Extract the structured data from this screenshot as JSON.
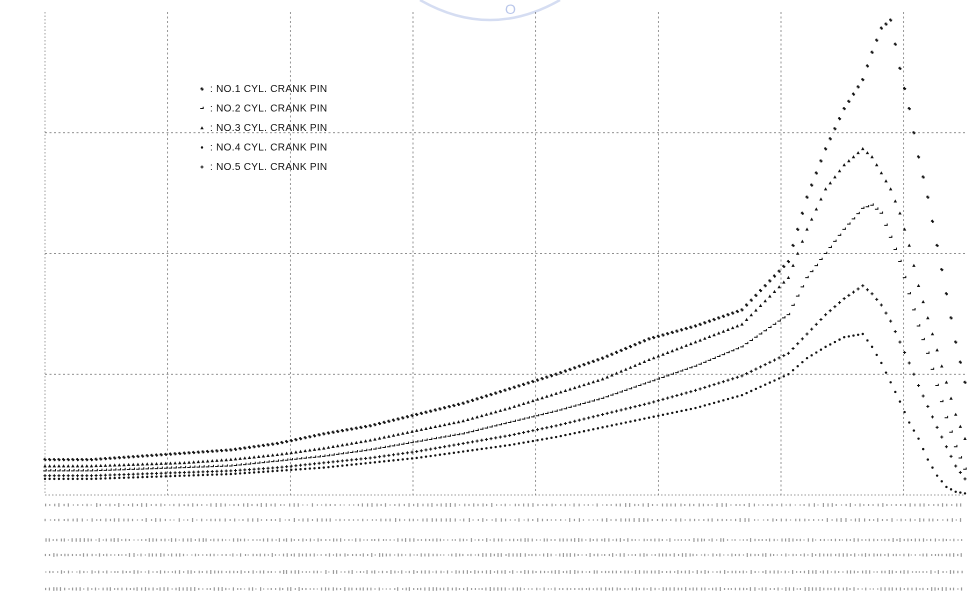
{
  "chart_data": {
    "type": "scatter",
    "title": "",
    "ylabel": "",
    "ylim": [
      0,
      300
    ],
    "x_index_range": [
      0,
      99
    ],
    "grid": true,
    "legend_position": "top-left",
    "series": [
      {
        "name": ": NO.1 CYL. CRANK PIN",
        "marker": "asterisk",
        "points": [
          [
            0,
            22
          ],
          [
            5,
            22
          ],
          [
            10,
            24
          ],
          [
            15,
            26
          ],
          [
            20,
            28
          ],
          [
            25,
            32
          ],
          [
            30,
            38
          ],
          [
            35,
            43
          ],
          [
            40,
            50
          ],
          [
            45,
            57
          ],
          [
            50,
            66
          ],
          [
            55,
            75
          ],
          [
            60,
            85
          ],
          [
            65,
            97
          ],
          [
            70,
            105
          ],
          [
            75,
            115
          ],
          [
            80,
            145
          ],
          [
            82,
            185
          ],
          [
            84,
            215
          ],
          [
            86,
            240
          ],
          [
            88,
            258
          ],
          [
            89,
            275
          ],
          [
            90,
            290
          ],
          [
            91,
            295
          ],
          [
            92,
            265
          ],
          [
            93,
            240
          ],
          [
            94,
            210
          ],
          [
            95,
            185
          ],
          [
            96,
            155
          ],
          [
            97,
            125
          ],
          [
            98,
            95
          ],
          [
            99,
            70
          ]
        ]
      },
      {
        "name": ": NO.2 CYL. CRANK PIN",
        "marker": "tick",
        "points": [
          [
            0,
            15
          ],
          [
            5,
            15
          ],
          [
            10,
            16
          ],
          [
            15,
            17
          ],
          [
            20,
            18
          ],
          [
            25,
            21
          ],
          [
            30,
            24
          ],
          [
            35,
            28
          ],
          [
            40,
            33
          ],
          [
            45,
            38
          ],
          [
            50,
            45
          ],
          [
            55,
            52
          ],
          [
            60,
            60
          ],
          [
            65,
            70
          ],
          [
            70,
            80
          ],
          [
            75,
            92
          ],
          [
            80,
            112
          ],
          [
            82,
            135
          ],
          [
            84,
            150
          ],
          [
            86,
            165
          ],
          [
            88,
            178
          ],
          [
            89,
            180
          ],
          [
            90,
            175
          ],
          [
            91,
            160
          ],
          [
            92,
            145
          ],
          [
            93,
            125
          ],
          [
            94,
            105
          ],
          [
            95,
            88
          ],
          [
            96,
            68
          ],
          [
            97,
            48
          ],
          [
            98,
            30
          ],
          [
            99,
            16
          ]
        ]
      },
      {
        "name": ": NO.3 CYL. CRANK PIN",
        "marker": "triangle",
        "points": [
          [
            0,
            18
          ],
          [
            5,
            18
          ],
          [
            10,
            19
          ],
          [
            15,
            20
          ],
          [
            20,
            22
          ],
          [
            25,
            25
          ],
          [
            30,
            29
          ],
          [
            35,
            34
          ],
          [
            40,
            40
          ],
          [
            45,
            46
          ],
          [
            50,
            54
          ],
          [
            55,
            63
          ],
          [
            60,
            72
          ],
          [
            65,
            84
          ],
          [
            70,
            95
          ],
          [
            75,
            106
          ],
          [
            80,
            135
          ],
          [
            82,
            165
          ],
          [
            84,
            190
          ],
          [
            86,
            205
          ],
          [
            88,
            215
          ],
          [
            89,
            210
          ],
          [
            90,
            200
          ],
          [
            91,
            190
          ],
          [
            92,
            175
          ],
          [
            93,
            155
          ],
          [
            94,
            130
          ],
          [
            95,
            110
          ],
          [
            96,
            90
          ],
          [
            97,
            70
          ],
          [
            98,
            50
          ],
          [
            99,
            35
          ]
        ]
      },
      {
        "name": ": NO.4 CYL. CRANK PIN",
        "marker": "dot",
        "points": [
          [
            0,
            10
          ],
          [
            5,
            10
          ],
          [
            10,
            11
          ],
          [
            15,
            12
          ],
          [
            20,
            13
          ],
          [
            25,
            15
          ],
          [
            30,
            17
          ],
          [
            35,
            20
          ],
          [
            40,
            23
          ],
          [
            45,
            27
          ],
          [
            50,
            31
          ],
          [
            55,
            36
          ],
          [
            60,
            42
          ],
          [
            65,
            48
          ],
          [
            70,
            54
          ],
          [
            75,
            62
          ],
          [
            80,
            75
          ],
          [
            82,
            85
          ],
          [
            84,
            92
          ],
          [
            86,
            98
          ],
          [
            88,
            100
          ],
          [
            89,
            92
          ],
          [
            90,
            82
          ],
          [
            91,
            70
          ],
          [
            92,
            58
          ],
          [
            93,
            45
          ],
          [
            94,
            35
          ],
          [
            95,
            22
          ],
          [
            96,
            12
          ],
          [
            97,
            5
          ],
          [
            98,
            2
          ],
          [
            99,
            1
          ]
        ]
      },
      {
        "name": ": NO.5 CYL. CRANK PIN",
        "marker": "plus",
        "points": [
          [
            0,
            12
          ],
          [
            5,
            12
          ],
          [
            10,
            13
          ],
          [
            15,
            14
          ],
          [
            20,
            15
          ],
          [
            25,
            17
          ],
          [
            30,
            20
          ],
          [
            35,
            23
          ],
          [
            40,
            27
          ],
          [
            45,
            32
          ],
          [
            50,
            37
          ],
          [
            55,
            43
          ],
          [
            60,
            50
          ],
          [
            65,
            57
          ],
          [
            70,
            65
          ],
          [
            75,
            74
          ],
          [
            80,
            88
          ],
          [
            82,
            100
          ],
          [
            84,
            112
          ],
          [
            86,
            122
          ],
          [
            88,
            130
          ],
          [
            89,
            125
          ],
          [
            90,
            118
          ],
          [
            91,
            108
          ],
          [
            92,
            95
          ],
          [
            93,
            82
          ],
          [
            94,
            68
          ],
          [
            95,
            55
          ],
          [
            96,
            42
          ],
          [
            97,
            30
          ],
          [
            98,
            18
          ],
          [
            99,
            10
          ]
        ]
      }
    ]
  }
}
